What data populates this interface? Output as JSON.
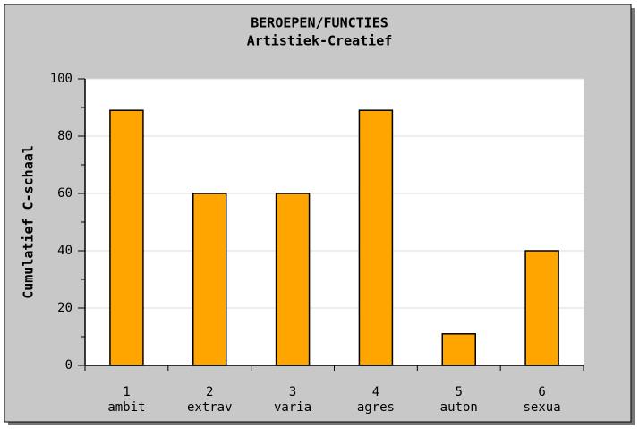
{
  "chart_data": {
    "type": "bar",
    "title": [
      "BEROEPEN/FUNCTIES",
      "Artistiek-Creatief"
    ],
    "y_label": "Cumulatief C-schaal",
    "categories": [
      [
        "1",
        "ambit"
      ],
      [
        "2",
        "extrav"
      ],
      [
        "3",
        "varia"
      ],
      [
        "4",
        "agres"
      ],
      [
        "5",
        "auton"
      ],
      [
        "6",
        "sexua"
      ]
    ],
    "values": [
      89,
      60,
      60,
      89,
      11,
      40
    ],
    "color": "#ffa500",
    "ylim": [
      0,
      100
    ],
    "yticks": [
      0,
      20,
      40,
      60,
      80,
      100
    ],
    "minor_yticks": [
      10,
      30,
      50,
      70,
      90
    ],
    "grid": true
  }
}
